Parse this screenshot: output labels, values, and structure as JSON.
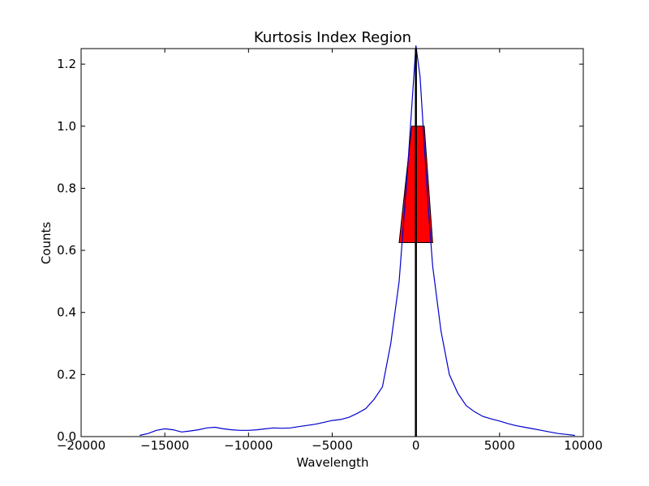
{
  "chart_data": {
    "type": "line",
    "title": "Kurtosis Index Region",
    "xlabel": "Wavelength",
    "ylabel": "Counts",
    "xlim": [
      -20000,
      10000
    ],
    "ylim": [
      0,
      1.25
    ],
    "xticks": [
      -20000,
      -15000,
      -10000,
      -5000,
      0,
      5000,
      10000
    ],
    "xtick_labels": [
      "−20000",
      "−15000",
      "−10000",
      "−5000",
      "0",
      "5000",
      "10000"
    ],
    "yticks": [
      0.0,
      0.2,
      0.4,
      0.6,
      0.8,
      1.0,
      1.2
    ],
    "ytick_labels": [
      "0.0",
      "0.2",
      "0.4",
      "0.6",
      "0.8",
      "1.0",
      "1.2"
    ],
    "grid": false,
    "colors": {
      "line": "#0000cc",
      "region": "#ff0000",
      "vline": "#000000"
    },
    "series": [
      {
        "x": [
          -16500,
          -16000,
          -15500,
          -15000,
          -14500,
          -14000,
          -13500,
          -13000,
          -12500,
          -12000,
          -11500,
          -11000,
          -10500,
          -10000,
          -9500,
          -9000,
          -8500,
          -8000,
          -7500,
          -7000,
          -6500,
          -6000,
          -5500,
          -5000,
          -4500,
          -4000,
          -3500,
          -3000,
          -2500,
          -2000,
          -1500,
          -1000,
          -750,
          -500,
          -250,
          0,
          250,
          500,
          750,
          1000,
          1500,
          2000,
          2500,
          3000,
          3500,
          4000,
          4500,
          5000,
          5500,
          6000,
          6500,
          7000,
          7500,
          8000,
          8500,
          9000,
          9500
        ],
        "y": [
          0.004,
          0.01,
          0.02,
          0.025,
          0.022,
          0.015,
          0.018,
          0.022,
          0.028,
          0.03,
          0.025,
          0.022,
          0.02,
          0.02,
          0.022,
          0.025,
          0.028,
          0.027,
          0.028,
          0.032,
          0.036,
          0.04,
          0.046,
          0.052,
          0.055,
          0.062,
          0.075,
          0.09,
          0.12,
          0.16,
          0.3,
          0.5,
          0.68,
          0.86,
          1.06,
          1.26,
          1.16,
          0.94,
          0.73,
          0.55,
          0.34,
          0.2,
          0.14,
          0.1,
          0.08,
          0.065,
          0.057,
          0.05,
          0.042,
          0.035,
          0.03,
          0.025,
          0.02,
          0.015,
          0.01,
          0.007,
          0.004
        ]
      }
    ],
    "region": {
      "x": [
        -500,
        -250,
        500,
        1000,
        -1000
      ],
      "y": [
        0.625,
        1.0,
        1.0,
        0.625,
        0.625
      ],
      "x_left_bottom": -1000,
      "x_left_top": -250,
      "x_right_top": 500,
      "x_right_bottom": 1000,
      "y_bottom": 0.625,
      "y_top": 1.0
    },
    "vline_x": 0
  }
}
